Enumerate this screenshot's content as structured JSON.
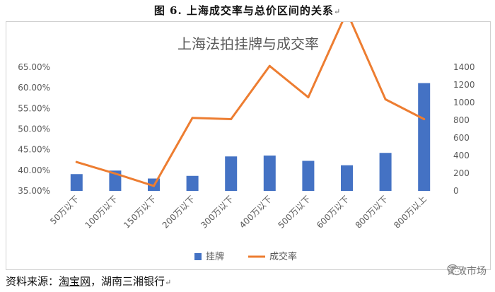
{
  "figure": {
    "caption": "图 6.  上海成交率与总价区间的关系",
    "caption_mark": "↵"
  },
  "source": {
    "prefix": "资料来源：",
    "link_text": "淘宝网",
    "suffix": "，湖南三湘银行",
    "mark": "↵"
  },
  "watermark": {
    "text": "谭政市场",
    "icon": "wechat-icon"
  },
  "chart_data": {
    "type": "bar",
    "title": "上海法拍挂牌与成交率",
    "categories": [
      "50万以下",
      "100万以下",
      "150万以下",
      "200万以下",
      "300万以下",
      "400万以下",
      "500万以下",
      "600万以下",
      "800万以下",
      "800万以上"
    ],
    "series": [
      {
        "name": "挂牌",
        "type": "bar",
        "axis": "right",
        "color": "#4472c4",
        "values": [
          190,
          230,
          140,
          170,
          390,
          400,
          340,
          290,
          430,
          1220
        ]
      },
      {
        "name": "成交率",
        "type": "line",
        "axis": "left",
        "color": "#ed7d31",
        "values": [
          0.42,
          0.392,
          0.362,
          0.527,
          0.524,
          0.653,
          0.577,
          0.784,
          0.572,
          0.524
        ]
      }
    ],
    "y_left": {
      "min": 0.35,
      "max": 0.65,
      "ticks": [
        "35.00%",
        "40.00%",
        "45.00%",
        "50.00%",
        "55.00%",
        "60.00%",
        "65.00%"
      ]
    },
    "y_right": {
      "min": 0,
      "max": 1400,
      "ticks": [
        "0",
        "200",
        "400",
        "600",
        "800",
        "1000",
        "1200",
        "1400"
      ]
    },
    "legend_position": "bottom",
    "grid": false
  }
}
